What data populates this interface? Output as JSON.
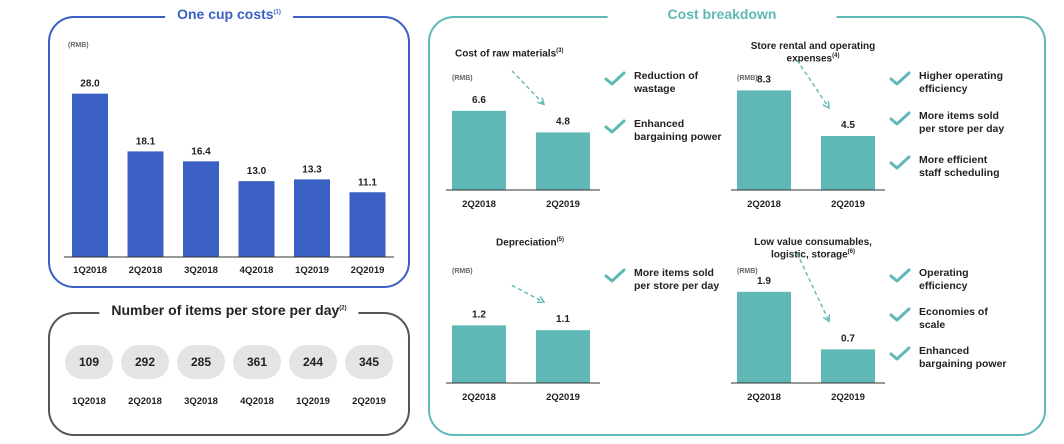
{
  "one_cup": {
    "title": "One cup costs",
    "title_sup": "(1)",
    "unit": "(RMB)",
    "bar_color": "#3a60c4",
    "border_color": "#3a60c4"
  },
  "items_per_store": {
    "title": "Number of items per store per day",
    "title_sup": "(2)",
    "values": [
      "109",
      "292",
      "285",
      "361",
      "244",
      "345"
    ],
    "labels": [
      "1Q2018",
      "2Q2018",
      "3Q2018",
      "4Q2018",
      "1Q2019",
      "2Q2019"
    ],
    "border_color": "#555555"
  },
  "cost_breakdown": {
    "title": "Cost breakdown",
    "border_color": "#5fb8b5",
    "teal": "#5fb8b5",
    "panels": [
      {
        "title": "Cost of raw materials",
        "title_sup": "(3)",
        "unit": "(RMB)",
        "reasons": [
          "Reduction of\nwastage",
          "Enhanced\nbargaining power"
        ]
      },
      {
        "title": "Store rental and operating\nexpenses",
        "title_sup": "(4)",
        "unit": "(RMB)",
        "reasons": [
          "Higher operating\nefficiency",
          "More items sold\nper store per day",
          "More efficient\nstaff scheduling"
        ]
      },
      {
        "title": "Depreciation",
        "title_sup": "(5)",
        "unit": "(RMB)",
        "reasons": [
          "More items sold\nper store per day"
        ]
      },
      {
        "title": "Low value consumables,\nlogistic, storage",
        "title_sup": "(6)",
        "unit": "(RMB)",
        "reasons": [
          "Operating\nefficiency",
          "Economies of\nscale",
          "Enhanced\nbargaining power"
        ]
      }
    ]
  },
  "chart_data": [
    {
      "type": "bar",
      "title": "One cup costs",
      "ylabel": "(RMB)",
      "categories": [
        "1Q2018",
        "2Q2018",
        "3Q2018",
        "4Q2018",
        "1Q2019",
        "2Q2019"
      ],
      "values": [
        28.0,
        18.1,
        16.4,
        13.0,
        13.3,
        11.1
      ],
      "value_labels": [
        "28.0",
        "18.1",
        "16.4",
        "13.0",
        "13.3",
        "11.1"
      ],
      "ylim": [
        0,
        30
      ],
      "grid": false
    },
    {
      "type": "bar",
      "title": "Cost of raw materials",
      "ylabel": "(RMB)",
      "categories": [
        "2Q2018",
        "2Q2019"
      ],
      "values": [
        6.6,
        4.8
      ],
      "value_labels": [
        "6.6",
        "4.8"
      ],
      "ylim": [
        0,
        10
      ]
    },
    {
      "type": "bar",
      "title": "Store rental and operating expenses",
      "ylabel": "(RMB)",
      "categories": [
        "2Q2018",
        "2Q2019"
      ],
      "values": [
        8.3,
        4.5
      ],
      "value_labels": [
        "8.3",
        "4.5"
      ],
      "ylim": [
        0,
        10
      ]
    },
    {
      "type": "bar",
      "title": "Depreciation",
      "ylabel": "(RMB)",
      "categories": [
        "2Q2018",
        "2Q2019"
      ],
      "values": [
        1.2,
        1.1
      ],
      "value_labels": [
        "1.2",
        "1.1"
      ],
      "ylim": [
        0,
        2.5
      ]
    },
    {
      "type": "bar",
      "title": "Low value consumables, logistic, storage",
      "ylabel": "(RMB)",
      "categories": [
        "2Q2018",
        "2Q2019"
      ],
      "values": [
        1.9,
        0.7
      ],
      "value_labels": [
        "1.9",
        "0.7"
      ],
      "ylim": [
        0,
        2.5
      ]
    }
  ]
}
